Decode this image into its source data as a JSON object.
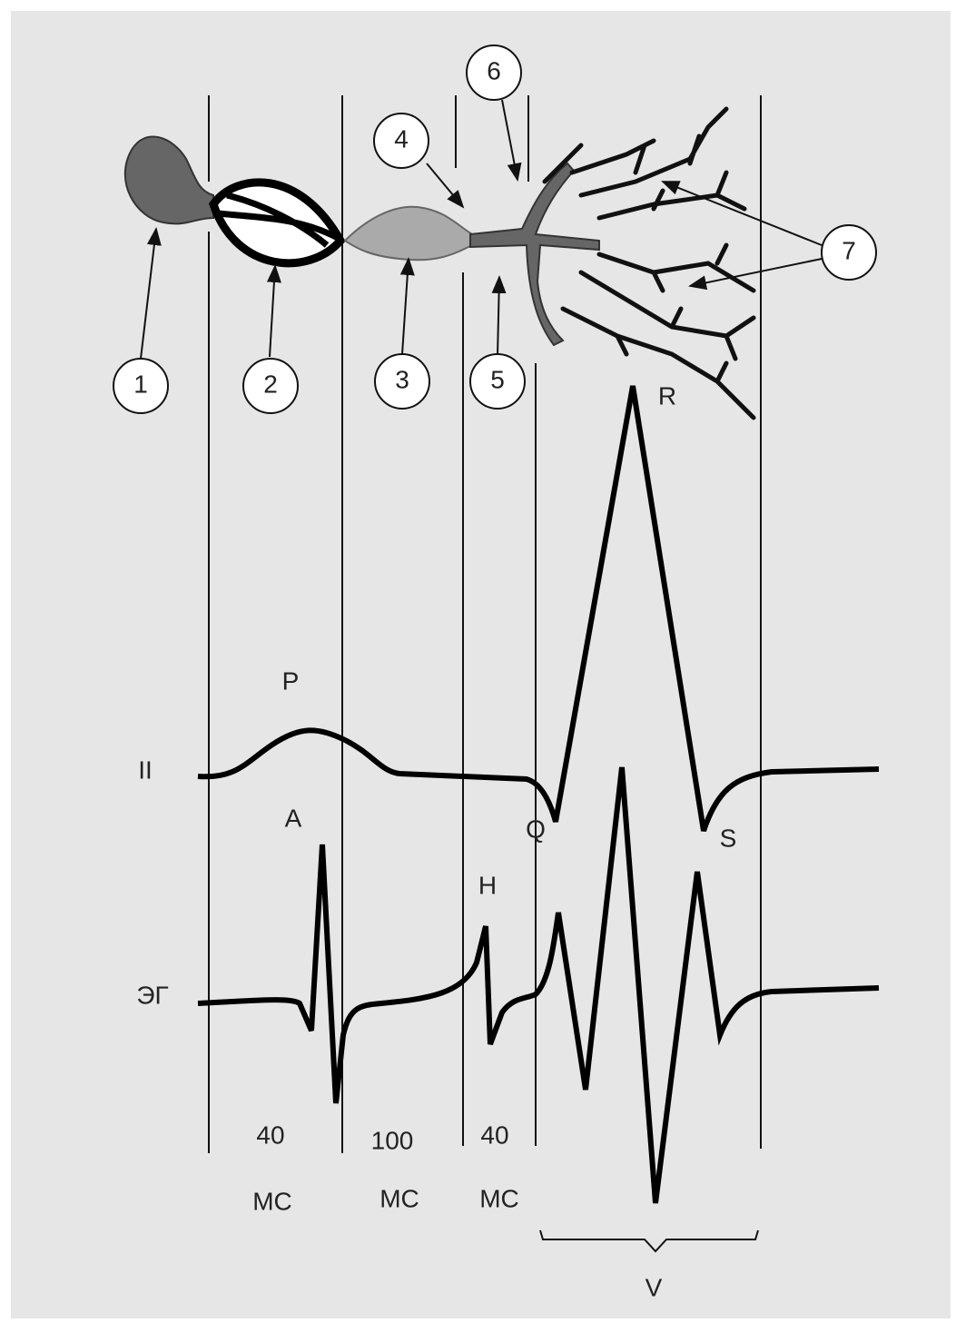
{
  "callouts": [
    "1",
    "2",
    "3",
    "4",
    "5",
    "6",
    "7"
  ],
  "ecg_waves": {
    "P": "P",
    "Q": "Q",
    "R": "R",
    "S": "S"
  },
  "eg_waves": {
    "A": "A",
    "H": "H",
    "V": "V"
  },
  "leads": [
    "II",
    "ЭГ"
  ],
  "intervals": [
    {
      "duration": 40,
      "unit": "МС"
    },
    {
      "duration": 100,
      "unit": "МС"
    },
    {
      "duration": 40,
      "unit": "МС"
    }
  ]
}
